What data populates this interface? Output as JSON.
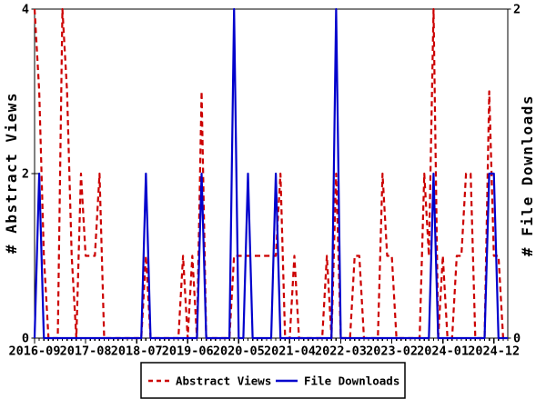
{
  "chart_data": {
    "type": "line",
    "title": "",
    "background": "#ffffff",
    "frame_color": "#000000",
    "x_axis": {
      "start": "2016-09",
      "end": "2025-03",
      "interval": "monthly",
      "tick_labels": [
        "2016-09",
        "2017-08",
        "2018-07",
        "2019-06",
        "2020-05",
        "2021-04",
        "2022-03",
        "2023-02",
        "2024-01",
        "2024-12"
      ],
      "tick_indices": [
        0,
        11,
        22,
        33,
        44,
        55,
        66,
        77,
        88,
        99
      ]
    },
    "left_axis": {
      "label": "# Abstract Views",
      "ticks": [
        0,
        2,
        4
      ],
      "min": 0,
      "max": 4
    },
    "right_axis": {
      "label": "# File Downloads",
      "ticks": [
        0,
        2
      ],
      "min": 0,
      "max": 2
    },
    "legend": {
      "position": "bottom-center",
      "entries": [
        "Abstract Views",
        "File Downloads"
      ]
    },
    "series": [
      {
        "name": "Abstract Views",
        "axis": "left",
        "color": "#cc0000",
        "line_style": "dashed",
        "values": [
          4,
          3,
          1,
          0,
          0,
          0,
          4,
          3,
          1,
          0,
          2,
          1,
          1,
          1,
          2,
          0,
          0,
          0,
          0,
          0,
          0,
          0,
          0,
          0,
          1,
          0,
          0,
          0,
          0,
          0,
          0,
          0,
          1,
          0,
          1,
          0,
          3,
          0,
          0,
          0,
          0,
          0,
          0,
          1,
          1,
          1,
          1,
          1,
          1,
          1,
          1,
          1,
          1,
          2,
          0,
          0,
          1,
          0,
          0,
          0,
          0,
          0,
          0,
          1,
          0,
          2,
          0,
          0,
          0,
          1,
          1,
          0,
          0,
          0,
          0,
          2,
          1,
          1,
          0,
          0,
          0,
          0,
          0,
          0,
          2,
          1,
          4,
          0,
          1,
          0,
          0,
          1,
          1,
          2,
          2,
          0,
          0,
          0,
          3,
          1,
          1,
          0,
          0
        ]
      },
      {
        "name": "File Downloads",
        "axis": "right",
        "color": "#0000cc",
        "line_style": "solid",
        "values": [
          0,
          1,
          0,
          0,
          0,
          0,
          0,
          0,
          0,
          0,
          0,
          0,
          0,
          0,
          0,
          0,
          0,
          0,
          0,
          0,
          0,
          0,
          0,
          0,
          1,
          0,
          0,
          0,
          0,
          0,
          0,
          0,
          0,
          0,
          0,
          0,
          1,
          0,
          0,
          0,
          0,
          0,
          0,
          2,
          0,
          0,
          1,
          0,
          0,
          0,
          0,
          0,
          1,
          0,
          0,
          0,
          0,
          0,
          0,
          0,
          0,
          0,
          0,
          0,
          0,
          2,
          0,
          0,
          0,
          0,
          0,
          0,
          0,
          0,
          0,
          0,
          0,
          0,
          0,
          0,
          0,
          0,
          0,
          0,
          0,
          0,
          1,
          0,
          0,
          0,
          0,
          0,
          0,
          0,
          0,
          0,
          0,
          0,
          1,
          1,
          0,
          0,
          0
        ]
      }
    ]
  }
}
